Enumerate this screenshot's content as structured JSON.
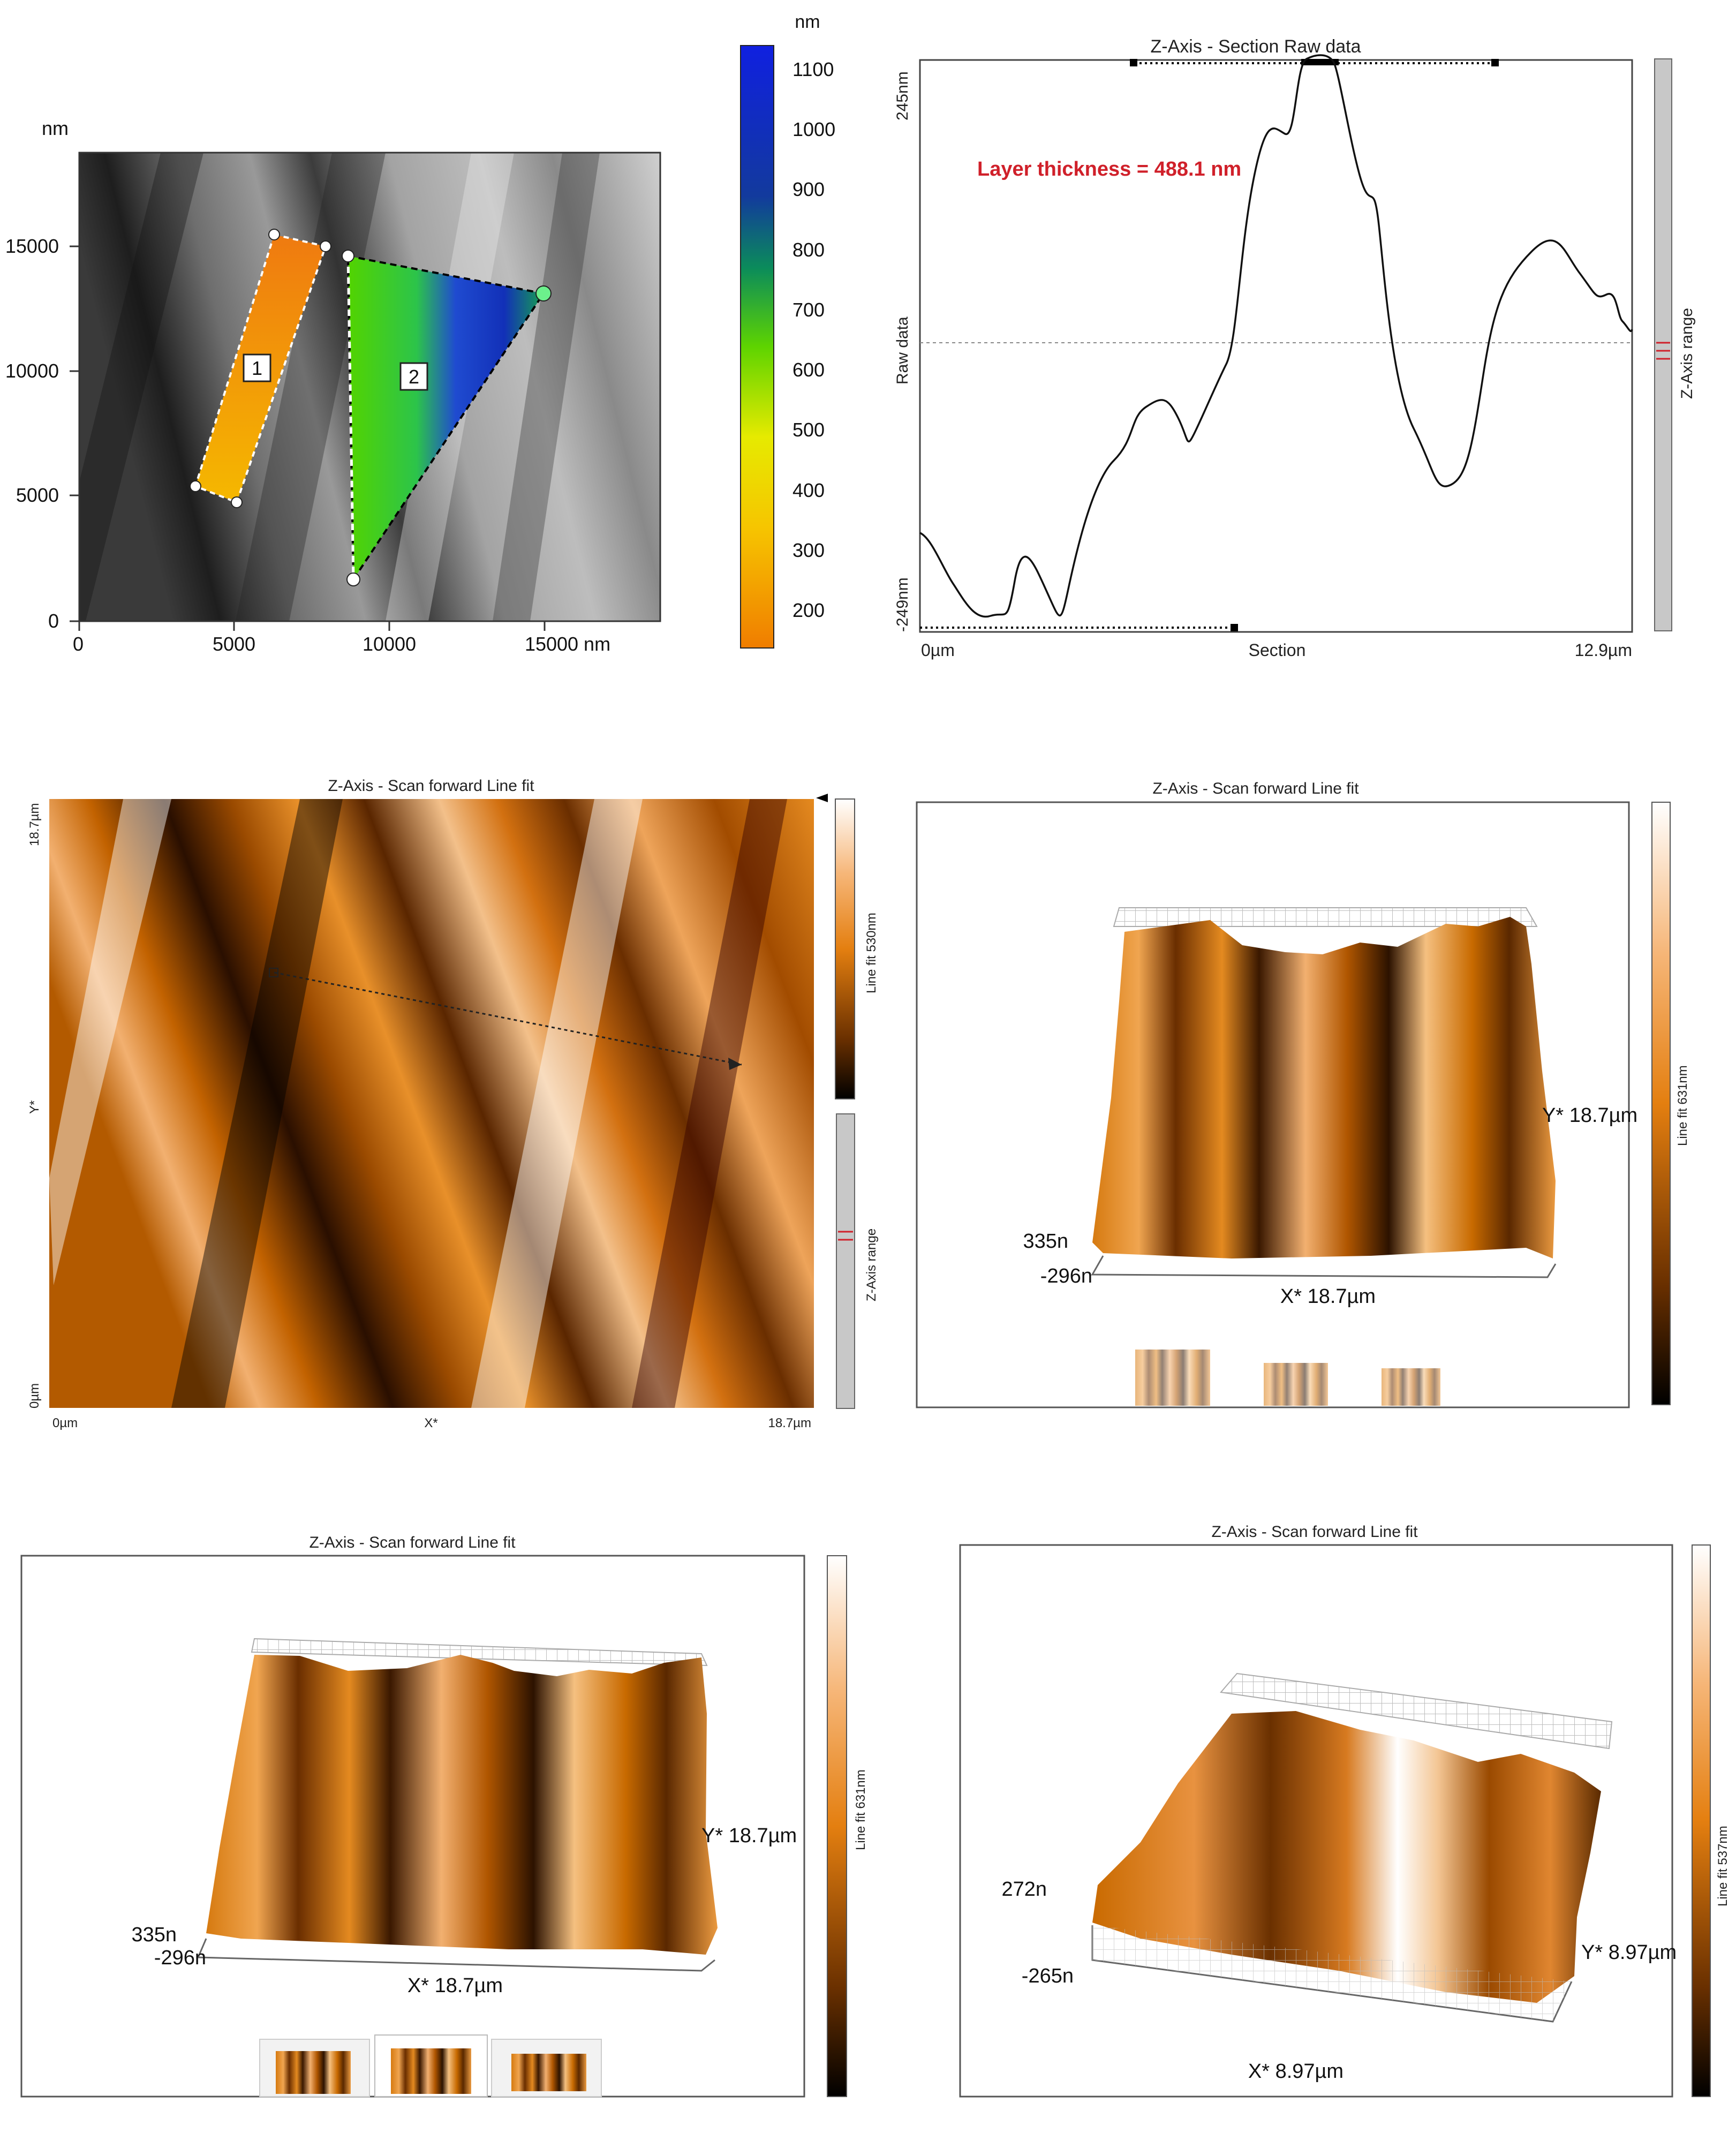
{
  "panel_a": {
    "unit_left": "nm",
    "unit_bar": "nm",
    "y_ticks": [
      "15000",
      "10000",
      "5000",
      "0"
    ],
    "x_ticks": [
      "0",
      "5000",
      "10000",
      "15000 nm"
    ],
    "colorbar_ticks": [
      "1100",
      "1000",
      "900",
      "800",
      "700",
      "600",
      "500",
      "400",
      "300",
      "200"
    ],
    "region_1_label": "1",
    "region_2_label": "2"
  },
  "panel_b": {
    "title": "Z-Axis - Section   Raw data",
    "annotation": "Layer thickness = 488.1 nm",
    "y_top": "245nm",
    "y_bottom": "-249nm",
    "y_label": "Raw data",
    "x_left": "0µm",
    "x_mid": "Section",
    "x_right": "12.9µm",
    "range_label": "Z-Axis range",
    "line_color": "#111111",
    "annotation_color": "#d0202a"
  },
  "panel_c": {
    "title": "Z-Axis - Scan forward   Line fit",
    "y_top": "18.7µm",
    "y_mid": "Y*",
    "y_bottom": "0µm",
    "x_left": "0µm",
    "x_mid": "X*",
    "x_right": "18.7µm",
    "bar_label": "Line fit 530nm",
    "range_label": "Z-Axis range"
  },
  "panel_d": {
    "title": "Z-Axis - Scan forward   Line fit",
    "y_axis": "Y* 18.7µm",
    "z_top": "335n",
    "z_bottom": "-296n",
    "x_axis": "X* 18.7µm",
    "bar_label": "Line fit 631nm"
  },
  "panel_e": {
    "title": "Z-Axis - Scan forward   Line fit",
    "y_axis": "Y* 18.7µm",
    "z_top": "335n",
    "z_bottom": "-296n",
    "x_axis": "X* 18.7µm",
    "bar_label": "Line fit 631nm"
  },
  "panel_f": {
    "title": "Z-Axis - Scan forward   Line fit",
    "y_axis": "Y* 8.97µm",
    "z_top": "272n",
    "z_bottom": "-265n",
    "x_axis": "X* 8.97µm",
    "bar_label": "Line fit 537nm"
  }
}
